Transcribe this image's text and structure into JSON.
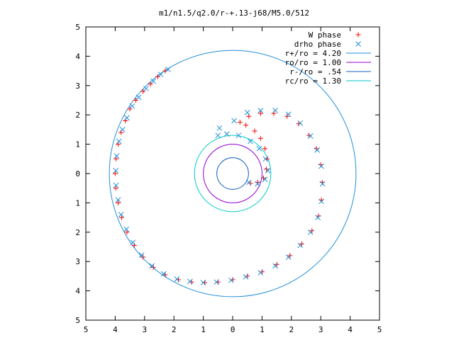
{
  "chart_data": {
    "type": "scatter",
    "title": "m1/n1.5/q2.0/r-+.13-j68/M5.0/512",
    "xlim": [
      -5,
      5
    ],
    "ylim": [
      -5,
      5
    ],
    "x_tick_values": [
      -5,
      -4,
      -3,
      -2,
      -1,
      0,
      1,
      2,
      3,
      4,
      5
    ],
    "x_tick_labels": [
      "5",
      "4",
      "3",
      "2",
      "1",
      "0",
      "1",
      "2",
      "3",
      "4",
      "5"
    ],
    "y_tick_values": [
      5,
      4,
      3,
      2,
      1,
      0,
      -1,
      -2,
      -3,
      -4,
      -5
    ],
    "y_tick_labels": [
      "5",
      "4",
      "3",
      "2",
      "1",
      "0",
      "1",
      "2",
      "3",
      "4",
      "5"
    ],
    "grid": false,
    "legend_position": "top-right",
    "series": [
      {
        "name": "W phase",
        "kind": "points",
        "marker": "plus",
        "color": "#ff0000",
        "points": [
          [
            -2.3,
            3.5
          ],
          [
            -2.55,
            3.3
          ],
          [
            -2.8,
            3.05
          ],
          [
            -3.05,
            2.8
          ],
          [
            -3.3,
            2.5
          ],
          [
            -3.5,
            2.2
          ],
          [
            -3.65,
            1.8
          ],
          [
            -3.8,
            1.4
          ],
          [
            -3.9,
            1.0
          ],
          [
            -3.97,
            0.5
          ],
          [
            -4.0,
            0.0
          ],
          [
            -3.98,
            -0.5
          ],
          [
            -3.9,
            -1.0
          ],
          [
            -3.78,
            -1.5
          ],
          [
            -3.6,
            -2.0
          ],
          [
            -3.35,
            -2.45
          ],
          [
            -3.05,
            -2.85
          ],
          [
            -2.7,
            -3.2
          ],
          [
            -2.3,
            -3.45
          ],
          [
            -1.85,
            -3.62
          ],
          [
            -1.4,
            -3.7
          ],
          [
            -0.95,
            -3.72
          ],
          [
            -0.5,
            -3.7
          ],
          [
            0.0,
            -3.62
          ],
          [
            0.5,
            -3.5
          ],
          [
            1.0,
            -3.35
          ],
          [
            1.5,
            -3.1
          ],
          [
            1.95,
            -2.8
          ],
          [
            2.35,
            -2.4
          ],
          [
            2.7,
            -1.95
          ],
          [
            2.92,
            -1.45
          ],
          [
            3.02,
            -0.9
          ],
          [
            3.05,
            -0.3
          ],
          [
            3.0,
            0.3
          ],
          [
            2.85,
            0.85
          ],
          [
            2.6,
            1.3
          ],
          [
            2.25,
            1.7
          ],
          [
            1.85,
            1.95
          ],
          [
            1.4,
            2.05
          ],
          [
            0.95,
            2.05
          ],
          [
            0.55,
            1.95
          ],
          [
            0.25,
            1.75
          ],
          [
            0.45,
            1.65
          ],
          [
            0.75,
            1.45
          ],
          [
            0.95,
            1.2
          ],
          [
            1.1,
            0.85
          ],
          [
            1.17,
            0.5
          ],
          [
            1.15,
            0.15
          ],
          [
            1.05,
            -0.15
          ],
          [
            0.85,
            -0.3
          ],
          [
            0.6,
            -0.33
          ]
        ]
      },
      {
        "name": "drho phase",
        "kind": "points",
        "marker": "cross",
        "color": "#1f8fd8",
        "points": [
          [
            -2.2,
            3.55
          ],
          [
            -2.45,
            3.38
          ],
          [
            -2.7,
            3.15
          ],
          [
            -2.95,
            2.9
          ],
          [
            -3.2,
            2.6
          ],
          [
            -3.42,
            2.3
          ],
          [
            -3.6,
            1.9
          ],
          [
            -3.75,
            1.5
          ],
          [
            -3.87,
            1.1
          ],
          [
            -3.95,
            0.6
          ],
          [
            -3.98,
            0.1
          ],
          [
            -3.97,
            -0.4
          ],
          [
            -3.9,
            -0.9
          ],
          [
            -3.8,
            -1.4
          ],
          [
            -3.62,
            -1.9
          ],
          [
            -3.4,
            -2.35
          ],
          [
            -3.1,
            -2.78
          ],
          [
            -2.75,
            -3.15
          ],
          [
            -2.35,
            -3.42
          ],
          [
            -1.9,
            -3.6
          ],
          [
            -1.45,
            -3.68
          ],
          [
            -1.0,
            -3.72
          ],
          [
            -0.55,
            -3.7
          ],
          [
            -0.05,
            -3.64
          ],
          [
            0.45,
            -3.52
          ],
          [
            0.95,
            -3.38
          ],
          [
            1.45,
            -3.15
          ],
          [
            1.9,
            -2.85
          ],
          [
            2.3,
            -2.45
          ],
          [
            2.65,
            -2.0
          ],
          [
            2.9,
            -1.5
          ],
          [
            3.02,
            -0.95
          ],
          [
            3.06,
            -0.35
          ],
          [
            3.02,
            0.25
          ],
          [
            2.88,
            0.8
          ],
          [
            2.65,
            1.28
          ],
          [
            2.3,
            1.72
          ],
          [
            1.9,
            2.02
          ],
          [
            1.45,
            2.15
          ],
          [
            0.95,
            2.15
          ],
          [
            0.5,
            2.08
          ],
          [
            0.05,
            1.8
          ],
          [
            -0.45,
            1.55
          ],
          [
            -0.5,
            1.3
          ],
          [
            -0.2,
            1.35
          ],
          [
            0.2,
            1.3
          ],
          [
            0.6,
            1.1
          ],
          [
            0.9,
            0.85
          ],
          [
            1.12,
            0.5
          ],
          [
            1.2,
            0.1
          ],
          [
            1.1,
            -0.2
          ],
          [
            0.85,
            -0.35
          ],
          [
            0.55,
            -0.3
          ]
        ]
      },
      {
        "name": "r+/ro = 4.20",
        "kind": "circle",
        "radius": 4.2,
        "color": "#1f8fd8"
      },
      {
        "name": "ro/ro = 1.00",
        "kind": "circle",
        "radius": 1.0,
        "color": "#9400d3"
      },
      {
        "name": "r-/ro = .54",
        "kind": "circle",
        "radius": 0.54,
        "color": "#1560bd"
      },
      {
        "name": "rc/ro = 1.30",
        "kind": "circle",
        "radius": 1.3,
        "color": "#00c8c8"
      }
    ]
  }
}
